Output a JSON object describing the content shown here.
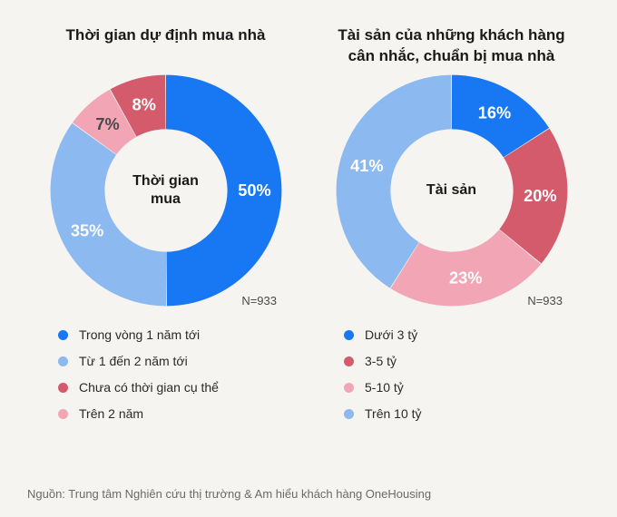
{
  "background_color": "#f5f4f0",
  "source_text": "Nguồn: Trung tâm Nghiên cứu thị trường & Am hiểu khách hàng OneHousing",
  "charts": [
    {
      "id": "time-chart",
      "title": "Thời gian dự định mua nhà",
      "center_label": "Thời gian\nmua",
      "n_label": "N=933",
      "type": "donut",
      "start_angle_deg": 0,
      "inner_radius": 52,
      "outer_radius": 98,
      "label_radius": 75,
      "label_fontsize": 14,
      "segments": [
        {
          "label": "50%",
          "value": 50,
          "color": "#1877f2",
          "label_color": "#ffffff",
          "legend": "Trong vòng 1 năm tới"
        },
        {
          "label": "35%",
          "value": 35,
          "color": "#8bb9f0",
          "label_color": "#ffffff",
          "legend": "Từ 1 đến 2 năm tới"
        },
        {
          "label": "7%",
          "value": 7,
          "color": "#f2a6b5",
          "label_color": "#4a4a4a",
          "legend": "Trên 2 năm"
        },
        {
          "label": "8%",
          "value": 8,
          "color": "#d35b6c",
          "label_color": "#ffffff",
          "legend": "Chưa có thời gian cụ thể"
        }
      ],
      "legend_order": [
        0,
        1,
        3,
        2
      ]
    },
    {
      "id": "asset-chart",
      "title": "Tài sản của những khách hàng cân nhắc, chuẩn bị mua nhà",
      "center_label": "Tài sản",
      "n_label": "N=933",
      "type": "donut",
      "start_angle_deg": 0,
      "inner_radius": 52,
      "outer_radius": 98,
      "label_radius": 75,
      "label_fontsize": 14,
      "segments": [
        {
          "label": "16%",
          "value": 16,
          "color": "#1877f2",
          "label_color": "#ffffff",
          "legend": "Dưới 3 tỷ"
        },
        {
          "label": "20%",
          "value": 20,
          "color": "#d35b6c",
          "label_color": "#ffffff",
          "legend": "3-5 tỷ"
        },
        {
          "label": "23%",
          "value": 23,
          "color": "#f2a6b5",
          "label_color": "#ffffff",
          "legend": "5-10 tỷ"
        },
        {
          "label": "41%",
          "value": 41,
          "color": "#8bb9f0",
          "label_color": "#ffffff",
          "legend": "Trên 10 tỷ"
        }
      ],
      "legend_order": [
        0,
        1,
        2,
        3
      ]
    }
  ]
}
